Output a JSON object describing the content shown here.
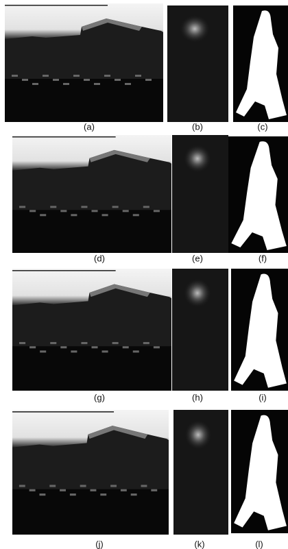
{
  "rows": [
    [
      "(a)",
      "(b)",
      "(c)"
    ],
    [
      "(d)",
      "(e)",
      "(f)"
    ],
    [
      "(g)",
      "(h)",
      "(i)"
    ],
    [
      "(j)",
      "(k)",
      "(l)"
    ]
  ]
}
